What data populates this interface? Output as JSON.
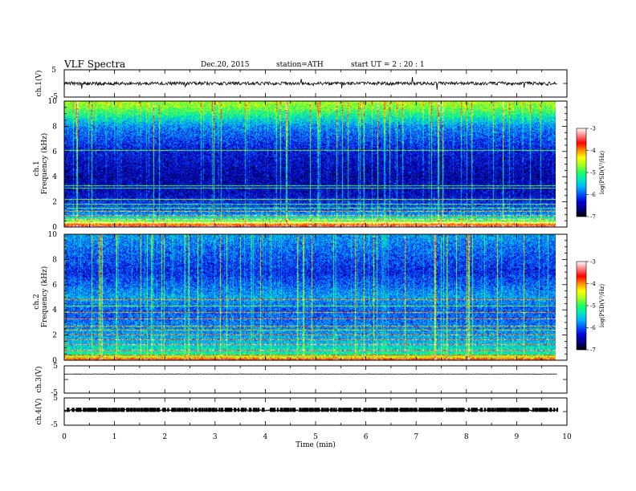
{
  "header": {
    "title": "VLF  Spectra",
    "date": "Dec.20, 2015",
    "station": "station=ATH",
    "start": "start  UT  =   2  : 20 : 1"
  },
  "colors": {
    "colormap": [
      "#000000",
      "#000080",
      "#0000d0",
      "#0050ff",
      "#00b0ff",
      "#00e8c0",
      "#20ff60",
      "#a0ff20",
      "#ffff00",
      "#ff9000",
      "#ff0000",
      "#ff8080",
      "#ffffff"
    ],
    "waveform": "#000000"
  },
  "chart_data": {
    "type": "heatmap",
    "xlabel": "Time  (min)",
    "xlim": [
      0,
      10
    ],
    "xticks": [
      "0",
      "1",
      "2",
      "3",
      "4",
      "5",
      "6",
      "7",
      "8",
      "9",
      "10"
    ],
    "panels": [
      {
        "id": "ch1-wave",
        "type": "line",
        "ylabel": "ch.1(V)",
        "ylim": [
          -5,
          5
        ],
        "yticks": [
          "5",
          "-5"
        ],
        "baseline": 0,
        "noise_amplitude": 0.6
      },
      {
        "id": "ch1-spectrogram",
        "type": "heatmap",
        "ylabel": "Frequency  (kHz)",
        "channel_label": "ch.1",
        "ylim": [
          0,
          10
        ],
        "yticks": [
          "0",
          "2",
          "4",
          "6",
          "8",
          "10"
        ],
        "time_extent": [
          0,
          9.8
        ],
        "colorbar": {
          "label": "log(PSD(V²/Hz)",
          "range": [
            -7,
            -3
          ],
          "ticks": [
            "-3",
            "-4",
            "-5",
            "-6",
            "-7"
          ]
        },
        "background_profile_kHz": [
          [
            0,
            -3.2
          ],
          [
            0.3,
            -4.5
          ],
          [
            1,
            -5.8
          ],
          [
            2.5,
            -6.4
          ],
          [
            4,
            -6.5
          ],
          [
            6,
            -6.3
          ],
          [
            8,
            -5.8
          ],
          [
            9.5,
            -4.8
          ],
          [
            10,
            -4.6
          ]
        ],
        "tone_lines_kHz": [
          0.3,
          0.6,
          0.9,
          1.2,
          1.5,
          1.8,
          2.2,
          3.1,
          3.3,
          6.1
        ]
      },
      {
        "id": "ch2-spectrogram",
        "type": "heatmap",
        "ylabel": "Frequency  (kHz)",
        "channel_label": "ch.2",
        "ylim": [
          0,
          10
        ],
        "yticks": [
          "0",
          "2",
          "4",
          "6",
          "8",
          "10"
        ],
        "time_extent": [
          0,
          9.8
        ],
        "colorbar": {
          "label": "log(PSD(V²/Hz)",
          "range": [
            -7,
            -3
          ],
          "ticks": [
            "-3",
            "-4",
            "-5",
            "-6",
            "-7"
          ]
        },
        "background_profile_kHz": [
          [
            0,
            -3.5
          ],
          [
            0.4,
            -5.2
          ],
          [
            1.5,
            -5.6
          ],
          [
            3,
            -5.9
          ],
          [
            4,
            -6.0
          ],
          [
            5,
            -5.7
          ],
          [
            7,
            -6.2
          ],
          [
            9,
            -5.9
          ],
          [
            10,
            -5.7
          ]
        ],
        "tone_lines_kHz": [
          0.4,
          0.8,
          1.2,
          1.6,
          2.0,
          2.4,
          2.7,
          3.3,
          3.8,
          4.3,
          4.8
        ]
      },
      {
        "id": "ch3-wave",
        "type": "line",
        "ylabel": "ch.3(V)",
        "ylim": [
          -5,
          5
        ],
        "yticks": [
          "5",
          "-5"
        ],
        "baseline": 2.0,
        "noise_amplitude": 0.05
      },
      {
        "id": "ch4-wave",
        "type": "line",
        "ylabel": "ch.4(V)",
        "ylim": [
          -5,
          5
        ],
        "yticks": [
          "5",
          "-5"
        ],
        "baseline": 0.5,
        "noise_amplitude": 0.3
      }
    ]
  }
}
